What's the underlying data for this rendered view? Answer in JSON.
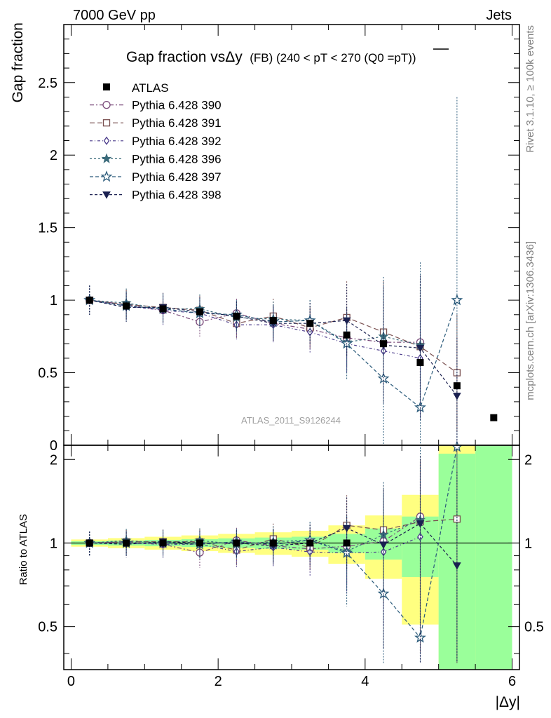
{
  "header": {
    "left": "7000 GeV pp",
    "right": "Jets"
  },
  "side_labels": {
    "rivet": "Rivet 3.1.10, ≥ 100k events",
    "mcplots": "mcplots.cern.ch [arXiv:1306.3436]"
  },
  "chart_data": {
    "type": "scatter",
    "title_main": "Gap fraction vsΔy",
    "title_sub": "(FB) (240 < pT < 270 (Q0 =pT))",
    "analysis": "ATLAS_2011_S9126244",
    "xlabel": "|Δy|",
    "ylabel": "Gap fraction",
    "ratio_ylabel": "Ratio to ATLAS",
    "xlim": [
      -0.1,
      6.1
    ],
    "ylim": [
      0,
      2.9
    ],
    "ratio_ylim": [
      0.35,
      2.25
    ],
    "x_ticks": [
      "0",
      "2",
      "4",
      "6"
    ],
    "y_ticks": [
      "0",
      "0.5",
      "1",
      "1.5",
      "2",
      "2.5"
    ],
    "ratio_ticks": [
      "0.5",
      "1",
      "2"
    ],
    "x": [
      0.25,
      0.75,
      1.25,
      1.75,
      2.25,
      2.75,
      3.25,
      3.75,
      4.25,
      4.75,
      5.25,
      5.75
    ],
    "bin_edges": [
      0,
      0.5,
      1,
      1.5,
      2,
      2.5,
      3,
      3.5,
      4,
      4.5,
      5,
      5.5,
      6
    ],
    "data": {
      "name": "ATLAS",
      "values": [
        1.0,
        0.96,
        0.94,
        0.92,
        0.89,
        0.86,
        0.84,
        0.76,
        0.7,
        0.57,
        0.41,
        0.19
      ],
      "band_green": [
        0.015,
        0.02,
        0.025,
        0.03,
        0.035,
        0.04,
        0.045,
        0.06,
        0.09,
        0.14,
        0.45,
        0.9
      ],
      "band_yellow": [
        0.03,
        0.04,
        0.05,
        0.06,
        0.07,
        0.08,
        0.09,
        0.12,
        0.18,
        0.28,
        0.9,
        1.8
      ]
    },
    "series": [
      {
        "name": "Pythia 6.428 390",
        "color": "#7a4a7a",
        "marker": "circle-open",
        "values": [
          1.0,
          0.97,
          0.93,
          0.85,
          0.91,
          0.84,
          0.8,
          0.74,
          0.71,
          0.71,
          null,
          null
        ],
        "errors": [
          0.1,
          0.1,
          0.1,
          0.1,
          0.1,
          0.12,
          0.14,
          0.2,
          0.3,
          0.4,
          null,
          null
        ]
      },
      {
        "name": "Pythia 6.428 391",
        "color": "#7a5050",
        "marker": "square-open",
        "values": [
          1.0,
          0.97,
          0.95,
          0.93,
          0.84,
          0.89,
          0.81,
          0.88,
          0.78,
          0.68,
          0.5,
          null
        ],
        "errors": [
          0.1,
          0.1,
          0.1,
          0.1,
          0.1,
          0.12,
          0.14,
          0.25,
          0.35,
          0.45,
          0.4,
          null
        ]
      },
      {
        "name": "Pythia 6.428 392",
        "color": "#4a3a8a",
        "marker": "diamond-open",
        "values": [
          1.0,
          0.96,
          0.93,
          0.91,
          0.83,
          0.83,
          0.78,
          0.7,
          0.65,
          0.6,
          null,
          null
        ],
        "errors": [
          0.1,
          0.1,
          0.1,
          0.1,
          0.1,
          0.12,
          0.14,
          0.2,
          0.3,
          0.4,
          null,
          null
        ]
      },
      {
        "name": "Pythia 6.428 396",
        "color": "#3a6a7a",
        "marker": "star-filled",
        "values": [
          1.0,
          0.98,
          0.94,
          0.94,
          0.88,
          0.87,
          0.86,
          0.71,
          0.75,
          0.69,
          null,
          null
        ],
        "errors": [
          0.1,
          0.1,
          0.1,
          0.1,
          0.1,
          0.12,
          0.14,
          0.2,
          0.3,
          0.4,
          null,
          null
        ]
      },
      {
        "name": "Pythia 6.428 397",
        "color": "#2a5a7a",
        "marker": "star-open",
        "values": [
          1.0,
          0.96,
          0.94,
          0.91,
          0.9,
          0.85,
          0.86,
          0.7,
          0.46,
          0.26,
          1.0,
          null
        ],
        "errors": [
          0.1,
          0.1,
          0.1,
          0.1,
          0.1,
          0.12,
          0.14,
          0.25,
          0.7,
          1.0,
          1.4,
          null
        ]
      },
      {
        "name": "Pythia 6.428 398",
        "color": "#1a2050",
        "marker": "triangle-down",
        "values": [
          1.0,
          0.95,
          0.95,
          0.92,
          0.89,
          0.84,
          0.84,
          0.86,
          0.69,
          0.67,
          0.34,
          null
        ],
        "errors": [
          0.1,
          0.1,
          0.1,
          0.1,
          0.1,
          0.12,
          0.14,
          0.25,
          0.4,
          0.5,
          0.4,
          null
        ]
      }
    ]
  }
}
